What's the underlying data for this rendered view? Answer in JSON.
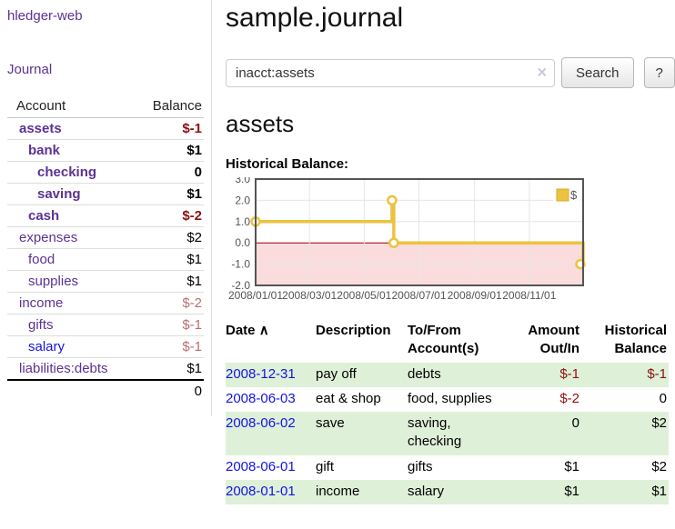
{
  "app_title": "hledger-web",
  "sidebar": {
    "journal_link": "Journal",
    "account_header": "Account",
    "balance_header": "Balance",
    "accounts": [
      {
        "name": "assets",
        "balance": "$-1"
      },
      {
        "name": "bank",
        "balance": "$1"
      },
      {
        "name": "checking",
        "balance": "0"
      },
      {
        "name": "saving",
        "balance": "$1"
      },
      {
        "name": "cash",
        "balance": "$-2"
      },
      {
        "name": "expenses",
        "balance": "$2"
      },
      {
        "name": "food",
        "balance": "$1"
      },
      {
        "name": "supplies",
        "balance": "$1"
      },
      {
        "name": "income",
        "balance": "$-2"
      },
      {
        "name": "gifts",
        "balance": "$-1"
      },
      {
        "name": "salary",
        "balance": "$-1"
      },
      {
        "name": "liabilities:debts",
        "balance": "$1"
      }
    ],
    "total": "0"
  },
  "header": {
    "title": "sample.journal",
    "search": {
      "value": "inacct:assets",
      "clear_icon": "×",
      "button": "Search",
      "help": "?"
    }
  },
  "content": {
    "account_title": "assets",
    "chart_label": "Historical Balance:"
  },
  "chart_data": {
    "type": "line",
    "style": "step-after",
    "title": "Historical Balance",
    "series": [
      {
        "name": "$",
        "color": "#edc240",
        "x": [
          "2008-01-01",
          "2008-06-01",
          "2008-06-03",
          "2008-12-31"
        ],
        "values": [
          1,
          2,
          0,
          -1
        ]
      }
    ],
    "x_range": [
      "2008-01-01",
      "2008-12-31"
    ],
    "x_ticks": [
      "2008/01/01",
      "2008/03/01",
      "2008/05/01",
      "2008/07/01",
      "2008/09/01",
      "2008/11/01"
    ],
    "y_ticks": [
      "3.0",
      "2.0",
      "1.0",
      "0.0",
      "-1.0",
      "-2.0"
    ],
    "ylim": [
      -2,
      3
    ],
    "grid": true,
    "negative_region_color": "#fbdcdc",
    "zero_line_color": "#990000",
    "legend": {
      "label": "$",
      "position": "top-right"
    }
  },
  "register": {
    "headers": {
      "date": "Date",
      "sort_icon": "∧",
      "description": "Description",
      "account": "To/From Account(s)",
      "amount": "Amount Out/In",
      "balance": "Historical Balance"
    },
    "rows": [
      {
        "date": "2008-12-31",
        "description": "pay off",
        "accounts": "debts",
        "amount": "$-1",
        "balance": "$-1"
      },
      {
        "date": "2008-06-03",
        "description": "eat & shop",
        "accounts": "food, supplies",
        "amount": "$-2",
        "balance": "0"
      },
      {
        "date": "2008-06-02",
        "description": "save",
        "accounts": "saving, checking",
        "amount": "0",
        "balance": "$2"
      },
      {
        "date": "2008-06-01",
        "description": "gift",
        "accounts": "gifts",
        "amount": "$1",
        "balance": "$2"
      },
      {
        "date": "2008-01-01",
        "description": "income",
        "accounts": "salary",
        "amount": "$1",
        "balance": "$1"
      }
    ]
  }
}
